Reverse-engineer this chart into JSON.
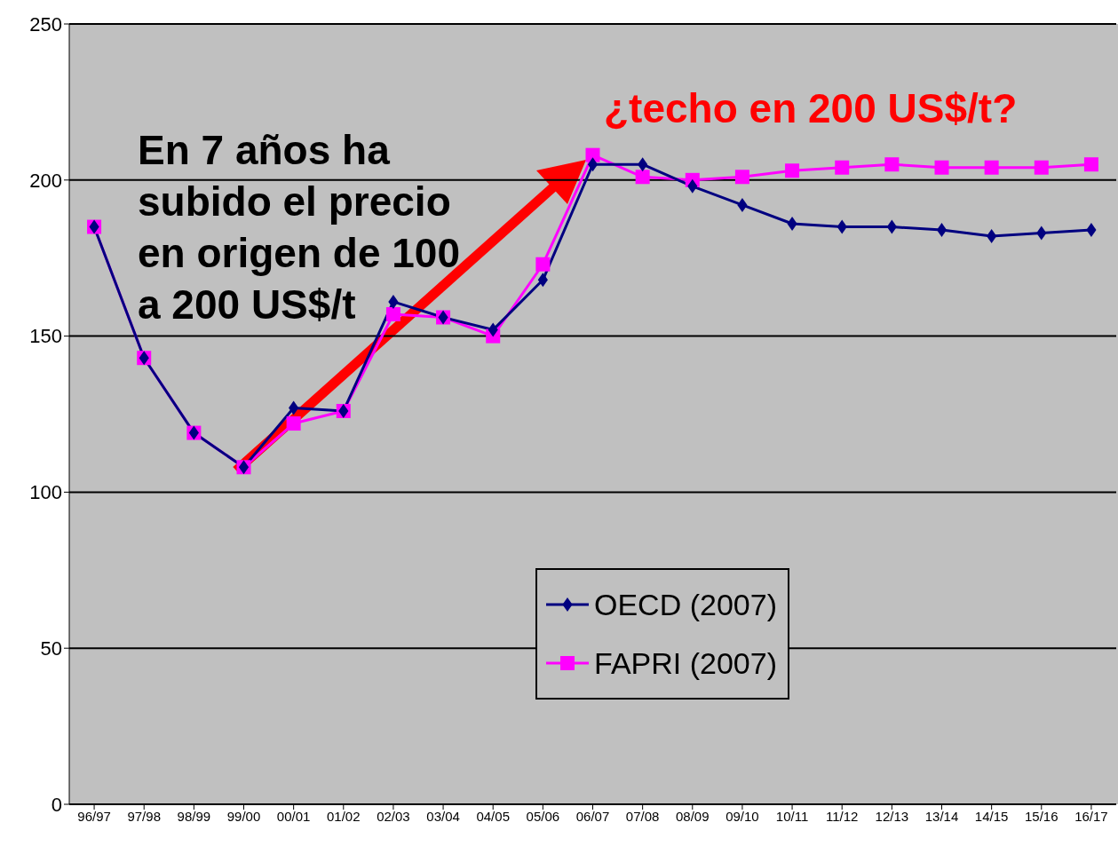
{
  "chart_data": {
    "type": "line",
    "categories": [
      "96/97",
      "97/98",
      "98/99",
      "99/00",
      "00/01",
      "01/02",
      "02/03",
      "03/04",
      "04/05",
      "05/06",
      "06/07",
      "07/08",
      "08/09",
      "09/10",
      "10/11",
      "11/12",
      "12/13",
      "13/14",
      "14/15",
      "15/16",
      "16/17"
    ],
    "series": [
      {
        "name": "OECD (2007)",
        "color": "#000080",
        "marker": "diamond",
        "values": [
          185,
          143,
          119,
          108,
          127,
          126,
          161,
          156,
          152,
          168,
          205,
          205,
          198,
          192,
          186,
          185,
          185,
          184,
          182,
          183,
          184
        ]
      },
      {
        "name": "FAPRI (2007)",
        "color": "#ff00ff",
        "marker": "square",
        "values": [
          185,
          143,
          119,
          108,
          122,
          126,
          157,
          156,
          150,
          173,
          208,
          201,
          200,
          201,
          203,
          204,
          205,
          204,
          204,
          204,
          205
        ]
      }
    ],
    "ylim": [
      0,
      250
    ],
    "yticks": [
      0,
      50,
      100,
      150,
      200,
      250
    ],
    "grid": "y",
    "legend": "bottom",
    "annotations": [
      "En 7 años ha subido el precio en origen de 100 a 200 US$/t",
      "¿techo en 200 US$/t?"
    ]
  }
}
